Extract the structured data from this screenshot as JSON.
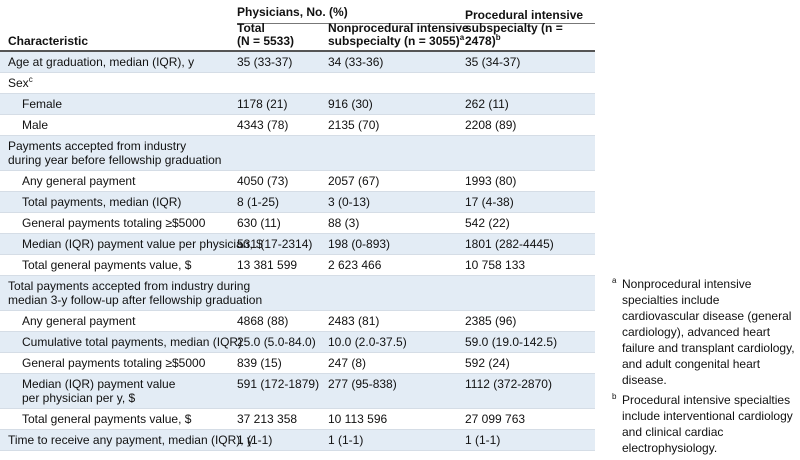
{
  "header": {
    "group": "Physicians, No. (%)",
    "columns": [
      {
        "lines": [
          "Characteristic"
        ]
      },
      {
        "lines": [
          "Total",
          "(N = 5533)"
        ]
      },
      {
        "lines": [
          "Nonprocedural intensive",
          "subspecialty (n = 3055)"
        ],
        "sup": "a"
      },
      {
        "lines": [
          "Procedural intensive",
          "subspecialty (n = 2478)"
        ],
        "sup": "b"
      }
    ]
  },
  "table": {
    "rows": [
      {
        "label": [
          "Age at graduation, median (IQR), y"
        ],
        "cells": [
          "35 (33-37)",
          "34 (33-36)",
          "35 (34-37)"
        ],
        "indent": false
      },
      {
        "label": [
          "Sex"
        ],
        "sup": "c",
        "cells": [],
        "indent": false
      },
      {
        "label": [
          "Female"
        ],
        "cells": [
          "1178 (21)",
          "916 (30)",
          "262 (11)"
        ],
        "indent": true
      },
      {
        "label": [
          "Male"
        ],
        "cells": [
          "4343 (78)",
          "2135 (70)",
          "2208 (89)"
        ],
        "indent": true
      },
      {
        "label": [
          "Payments accepted from industry",
          "during year before fellowship graduation"
        ],
        "cells": [],
        "indent": false
      },
      {
        "label": [
          "Any general payment"
        ],
        "cells": [
          "4050 (73)",
          "2057 (67)",
          "1993 (80)"
        ],
        "indent": true
      },
      {
        "label": [
          "Total payments, median (IQR)"
        ],
        "cells": [
          "8 (1-25)",
          "3 (0-13)",
          "17 (4-38)"
        ],
        "indent": true
      },
      {
        "label": [
          "General payments totaling ≥$5000"
        ],
        "cells": [
          "630 (11)",
          "88 (3)",
          "542 (22)"
        ],
        "indent": true
      },
      {
        "label": [
          "Median (IQR) payment value per physician, $"
        ],
        "cells": [
          "531 (17-2314)",
          "198 (0-893)",
          "1801 (282-4445)"
        ],
        "indent": true
      },
      {
        "label": [
          "Total general payments value, $"
        ],
        "cells": [
          "13 381 599",
          "2 623 466",
          "10 758 133"
        ],
        "indent": true
      },
      {
        "label": [
          "Total payments accepted from industry during",
          "median 3-y follow-up after fellowship graduation"
        ],
        "cells": [],
        "indent": false
      },
      {
        "label": [
          "Any general payment"
        ],
        "cells": [
          "4868 (88)",
          "2483 (81)",
          "2385 (96)"
        ],
        "indent": true
      },
      {
        "label": [
          "Cumulative total payments, median (IQR)"
        ],
        "cells": [
          "25.0 (5.0-84.0)",
          "10.0 (2.0-37.5)",
          "59.0 (19.0-142.5)"
        ],
        "indent": true
      },
      {
        "label": [
          "General payments totaling ≥$5000"
        ],
        "cells": [
          "839 (15)",
          "247 (8)",
          "592 (24)"
        ],
        "indent": true
      },
      {
        "label": [
          "Median (IQR) payment value",
          "per physician per y, $"
        ],
        "cells": [
          "591 (172-1879)",
          "277 (95-838)",
          "1112 (372-2870)"
        ],
        "indent": true
      },
      {
        "label": [
          "Total general payments value, $"
        ],
        "cells": [
          "37 213 358",
          "10 113 596",
          "27 099 763"
        ],
        "indent": true
      },
      {
        "label": [
          "Time to receive any payment, median (IQR), y"
        ],
        "cells": [
          "1 (1-1)",
          "1 (1-1)",
          "1 (1-1)"
        ],
        "indent": false
      }
    ]
  },
  "footnotes": [
    {
      "marker": "a",
      "text": "Nonprocedural intensive specialties include cardiovascular disease (general cardiology), advanced heart failure and transplant cardiology, and adult congenital heart disease."
    },
    {
      "marker": "b",
      "text": "Procedural intensive specialties include interventional cardiology and clinical cardiac electrophysiology."
    }
  ]
}
